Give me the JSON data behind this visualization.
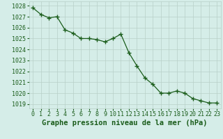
{
  "x": [
    0,
    1,
    2,
    3,
    4,
    5,
    6,
    7,
    8,
    9,
    10,
    11,
    12,
    13,
    14,
    15,
    16,
    17,
    18,
    19,
    20,
    21,
    22,
    23
  ],
  "y": [
    1027.8,
    1027.2,
    1026.9,
    1027.0,
    1025.8,
    1025.5,
    1025.0,
    1025.0,
    1024.9,
    1024.7,
    1025.0,
    1025.4,
    1023.7,
    1022.5,
    1021.4,
    1020.8,
    1020.0,
    1020.0,
    1020.2,
    1020.0,
    1019.5,
    1019.3,
    1019.1,
    1019.1
  ],
  "line_color": "#1a5c1a",
  "marker": "+",
  "marker_size": 4,
  "marker_linewidth": 1.0,
  "bg_color": "#d5ede8",
  "grid_color": "#b8cfc8",
  "xlabel": "Graphe pression niveau de la mer (hPa)",
  "xlabel_color": "#1a5c1a",
  "xlabel_fontsize": 7.5,
  "tick_color": "#1a5c1a",
  "tick_fontsize": 6,
  "ylim": [
    1018.6,
    1028.4
  ],
  "xlim": [
    -0.5,
    23.5
  ],
  "yticks": [
    1019,
    1020,
    1021,
    1022,
    1023,
    1024,
    1025,
    1026,
    1027,
    1028
  ],
  "xticks": [
    0,
    1,
    2,
    3,
    4,
    5,
    6,
    7,
    8,
    9,
    10,
    11,
    12,
    13,
    14,
    15,
    16,
    17,
    18,
    19,
    20,
    21,
    22,
    23
  ]
}
